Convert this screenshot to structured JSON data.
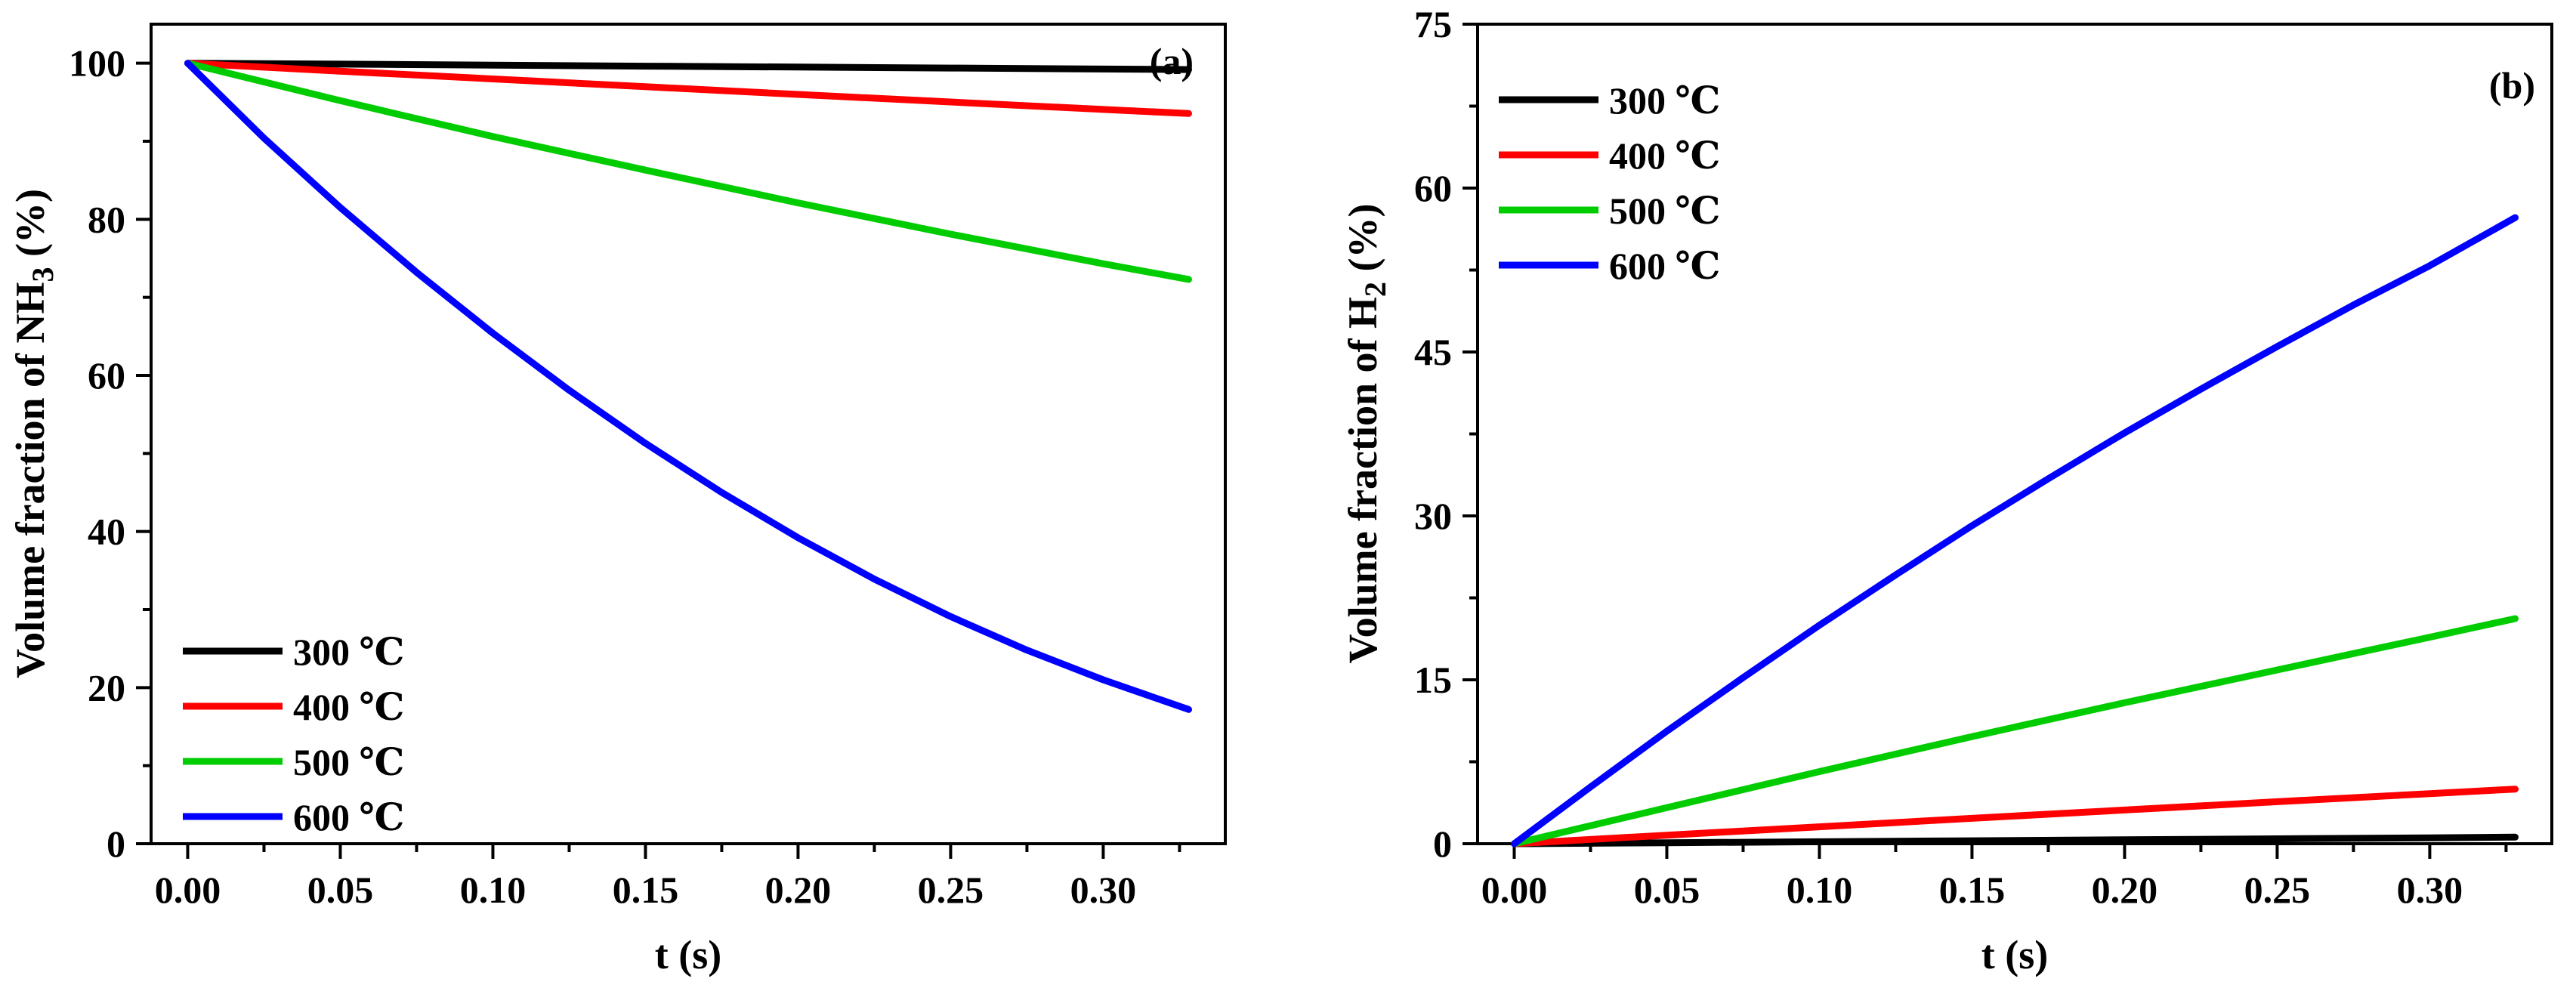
{
  "chart_data": [
    {
      "type": "line",
      "panel_label": "(a)",
      "xlabel": "t (s)",
      "ylabel_main": "Volume fraction of NH",
      "ylabel_sub": "3",
      "ylabel_tail": "  (%)",
      "xlim": [
        -0.012,
        0.34
      ],
      "ylim": [
        0,
        105
      ],
      "x_ticks": [
        0.0,
        0.05,
        0.1,
        0.15,
        0.2,
        0.25,
        0.3
      ],
      "x_tick_labels": [
        "0.00",
        "0.05",
        "0.10",
        "0.15",
        "0.20",
        "0.25",
        "0.30"
      ],
      "y_ticks": [
        0,
        20,
        40,
        60,
        80,
        100
      ],
      "y_tick_labels": [
        "0",
        "20",
        "40",
        "60",
        "80",
        "100"
      ],
      "legend_position": "bottom-left",
      "series": [
        {
          "name": "300 ℃",
          "color": "#000000",
          "x": [
            0,
            0.05,
            0.1,
            0.15,
            0.2,
            0.25,
            0.3,
            0.328
          ],
          "y": [
            100,
            99.88,
            99.75,
            99.62,
            99.5,
            99.38,
            99.25,
            99.18
          ]
        },
        {
          "name": "400 ℃",
          "color": "#ff0000",
          "x": [
            0,
            0.05,
            0.1,
            0.15,
            0.2,
            0.25,
            0.3,
            0.328
          ],
          "y": [
            100,
            98.98,
            97.98,
            96.99,
            96.0,
            95.03,
            94.07,
            93.55
          ]
        },
        {
          "name": "500 ℃",
          "color": "#00cc00",
          "x": [
            0,
            0.05,
            0.1,
            0.15,
            0.2,
            0.25,
            0.3,
            0.328
          ],
          "y": [
            100,
            95.2,
            90.6,
            86.3,
            82.1,
            78.1,
            74.3,
            72.3
          ]
        },
        {
          "name": "600 ℃",
          "color": "#0000ff",
          "x": [
            0,
            0.025,
            0.05,
            0.075,
            0.1,
            0.125,
            0.15,
            0.175,
            0.2,
            0.225,
            0.25,
            0.275,
            0.3,
            0.328
          ],
          "y": [
            100,
            90.4,
            81.5,
            73.2,
            65.4,
            58.1,
            51.3,
            45.0,
            39.2,
            33.9,
            29.1,
            24.8,
            21.0,
            17.2
          ]
        }
      ]
    },
    {
      "type": "line",
      "panel_label": "(b)",
      "xlabel": "t (s)",
      "ylabel_main": "Volume fraction of H",
      "ylabel_sub": "2",
      "ylabel_tail": "  (%)",
      "xlim": [
        -0.012,
        0.34
      ],
      "ylim": [
        0,
        75
      ],
      "x_ticks": [
        0.0,
        0.05,
        0.1,
        0.15,
        0.2,
        0.25,
        0.3
      ],
      "x_tick_labels": [
        "0.00",
        "0.05",
        "0.10",
        "0.15",
        "0.20",
        "0.25",
        "0.30"
      ],
      "y_ticks": [
        0,
        15,
        30,
        45,
        60,
        75
      ],
      "y_tick_labels": [
        "0",
        "15",
        "30",
        "45",
        "60",
        "75"
      ],
      "legend_position": "top-left",
      "series": [
        {
          "name": "300 ℃",
          "color": "#000000",
          "x": [
            0,
            0.05,
            0.1,
            0.15,
            0.2,
            0.25,
            0.3,
            0.328
          ],
          "y": [
            0,
            0.09,
            0.18,
            0.27,
            0.36,
            0.45,
            0.54,
            0.6
          ]
        },
        {
          "name": "400 ℃",
          "color": "#ff0000",
          "x": [
            0,
            0.05,
            0.1,
            0.15,
            0.2,
            0.25,
            0.3,
            0.328
          ],
          "y": [
            0,
            0.78,
            1.55,
            2.32,
            3.08,
            3.84,
            4.58,
            5.0
          ]
        },
        {
          "name": "500 ℃",
          "color": "#00cc00",
          "x": [
            0,
            0.05,
            0.1,
            0.15,
            0.2,
            0.25,
            0.3,
            0.328
          ],
          "y": [
            0,
            3.3,
            6.6,
            9.8,
            12.9,
            15.9,
            18.9,
            20.6
          ]
        },
        {
          "name": "600 ℃",
          "color": "#0000ff",
          "x": [
            0,
            0.025,
            0.05,
            0.075,
            0.1,
            0.125,
            0.15,
            0.175,
            0.2,
            0.225,
            0.25,
            0.275,
            0.3,
            0.328
          ],
          "y": [
            0,
            5.2,
            10.3,
            15.2,
            20.0,
            24.6,
            29.1,
            33.4,
            37.6,
            41.6,
            45.5,
            49.3,
            52.9,
            57.3
          ]
        }
      ]
    }
  ]
}
